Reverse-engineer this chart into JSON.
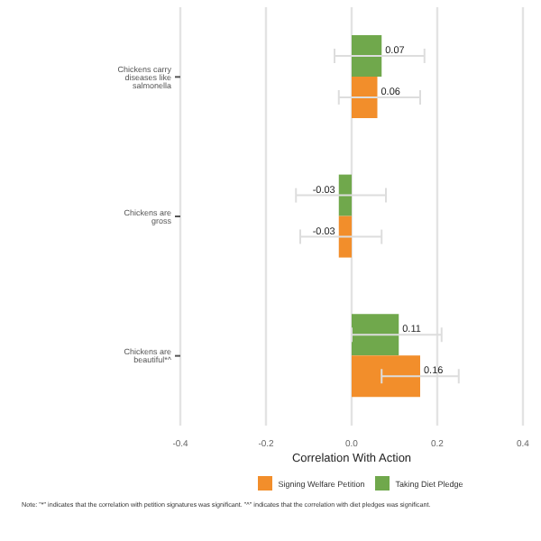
{
  "chart_data": {
    "type": "bar",
    "orientation": "horizontal",
    "xlabel": "Correlation With Action",
    "categories": [
      "Chickens carry diseases like salmonella",
      "Chickens are gross",
      "Chickens are beautiful*^"
    ],
    "series": [
      {
        "name": "Signing Welfare Petition",
        "color": "#f28e2b",
        "values": [
          0.06,
          -0.03,
          0.16
        ],
        "errors": [
          [
            -0.03,
            0.16
          ],
          [
            -0.12,
            0.07
          ],
          [
            0.07,
            0.25
          ]
        ]
      },
      {
        "name": "Taking Diet Pledge",
        "color": "#70a84c",
        "values": [
          0.07,
          -0.03,
          0.11
        ],
        "errors": [
          [
            -0.04,
            0.17
          ],
          [
            -0.13,
            0.08
          ],
          [
            0.0,
            0.21
          ]
        ]
      }
    ],
    "xlim": [
      -0.4,
      0.4
    ],
    "xticks": [
      {
        "value": -0.4,
        "label": "-0.4"
      },
      {
        "value": -0.2,
        "label": "-0.2"
      },
      {
        "value": 0,
        "label": "0.0"
      },
      {
        "value": 0.2,
        "label": "0.2"
      },
      {
        "value": 0.4,
        "label": "0.4"
      }
    ],
    "grid": "x",
    "legend": "bottom",
    "data_labels": true,
    "annotations": [
      "Note: \"*\" indicates that the correlation with petition signatures was significant. \"^\" indicates that the correlation with diet pledges was significant."
    ]
  }
}
